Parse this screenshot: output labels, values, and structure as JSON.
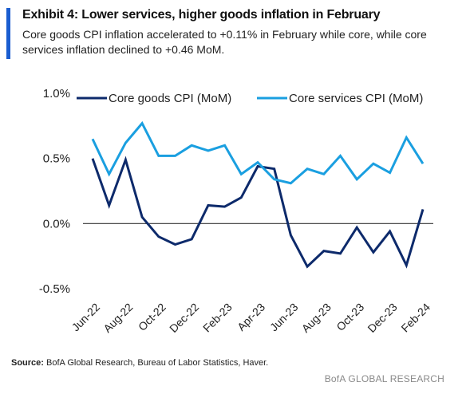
{
  "header": {
    "title": "Exhibit 4: Lower services, higher goods inflation in February",
    "subtitle": "Core goods CPI inflation accelerated to +0.11% in February while core, while core services inflation declined to +0.46 MoM.",
    "accent_color": "#1a5dd0"
  },
  "footer": {
    "source_label": "Source:",
    "source_text": "BofA Global Research, Bureau of Labor Statistics, Haver.",
    "brand": "BofA GLOBAL RESEARCH"
  },
  "chart_data": {
    "type": "line",
    "title": "",
    "xlabel": "",
    "ylabel": "",
    "ylim": [
      -0.5,
      1.0
    ],
    "y_ticks": [
      {
        "value": 1.0,
        "label": "1.0%"
      },
      {
        "value": 0.5,
        "label": "0.5%"
      },
      {
        "value": 0.0,
        "label": "0.0%"
      },
      {
        "value": -0.5,
        "label": "-0.5%"
      }
    ],
    "zero_line": true,
    "grid": false,
    "legend_position": "top",
    "x": [
      "Jun-22",
      "Jul-22",
      "Aug-22",
      "Sep-22",
      "Oct-22",
      "Nov-22",
      "Dec-22",
      "Jan-23",
      "Feb-23",
      "Mar-23",
      "Apr-23",
      "May-23",
      "Jun-23",
      "Jul-23",
      "Aug-23",
      "Sep-23",
      "Oct-23",
      "Nov-23",
      "Dec-23",
      "Jan-24",
      "Feb-24"
    ],
    "x_tick_labels": [
      "Jun-22",
      "Aug-22",
      "Oct-22",
      "Dec-22",
      "Feb-23",
      "Apr-23",
      "Jun-23",
      "Aug-23",
      "Oct-23",
      "Dec-23",
      "Feb-24"
    ],
    "series": [
      {
        "name": "Core goods CPI (MoM)",
        "color": "#0d2a6b",
        "values": [
          0.5,
          0.14,
          0.49,
          0.05,
          -0.1,
          -0.16,
          -0.12,
          0.14,
          0.13,
          0.2,
          0.44,
          0.42,
          -0.09,
          -0.33,
          -0.21,
          -0.23,
          -0.03,
          -0.22,
          -0.06,
          -0.32,
          0.11
        ]
      },
      {
        "name": "Core services CPI (MoM)",
        "color": "#1a9fe0",
        "values": [
          0.65,
          0.38,
          0.62,
          0.77,
          0.52,
          0.52,
          0.6,
          0.56,
          0.6,
          0.38,
          0.47,
          0.34,
          0.31,
          0.42,
          0.38,
          0.52,
          0.34,
          0.46,
          0.39,
          0.66,
          0.46
        ]
      }
    ]
  }
}
